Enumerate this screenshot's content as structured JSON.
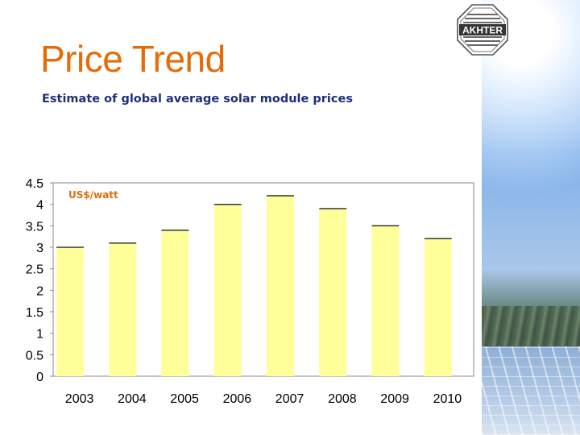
{
  "slide": {
    "title": "Price Trend",
    "subtitle": "Estimate of global average solar module prices",
    "logo_text": "AKHTER"
  },
  "colors": {
    "title": "#e46c0a",
    "subtitle": "#1f2f7a",
    "bar_fill": "#ffff99",
    "unit_label": "#e46c0a"
  },
  "chart_data": {
    "type": "bar",
    "categories": [
      "2003",
      "2004",
      "2005",
      "2006",
      "2007",
      "2008",
      "2009",
      "2010"
    ],
    "values": [
      3.0,
      3.1,
      3.4,
      4.0,
      4.2,
      3.9,
      3.5,
      3.2
    ],
    "ylabel": "US$/watt",
    "ylim": [
      0,
      4.5
    ],
    "yticks": [
      "0",
      "0.5",
      "1",
      "1.5",
      "2",
      "2.5",
      "3",
      "3.5",
      "4",
      "4.5"
    ],
    "grid": false,
    "legend": "none"
  }
}
